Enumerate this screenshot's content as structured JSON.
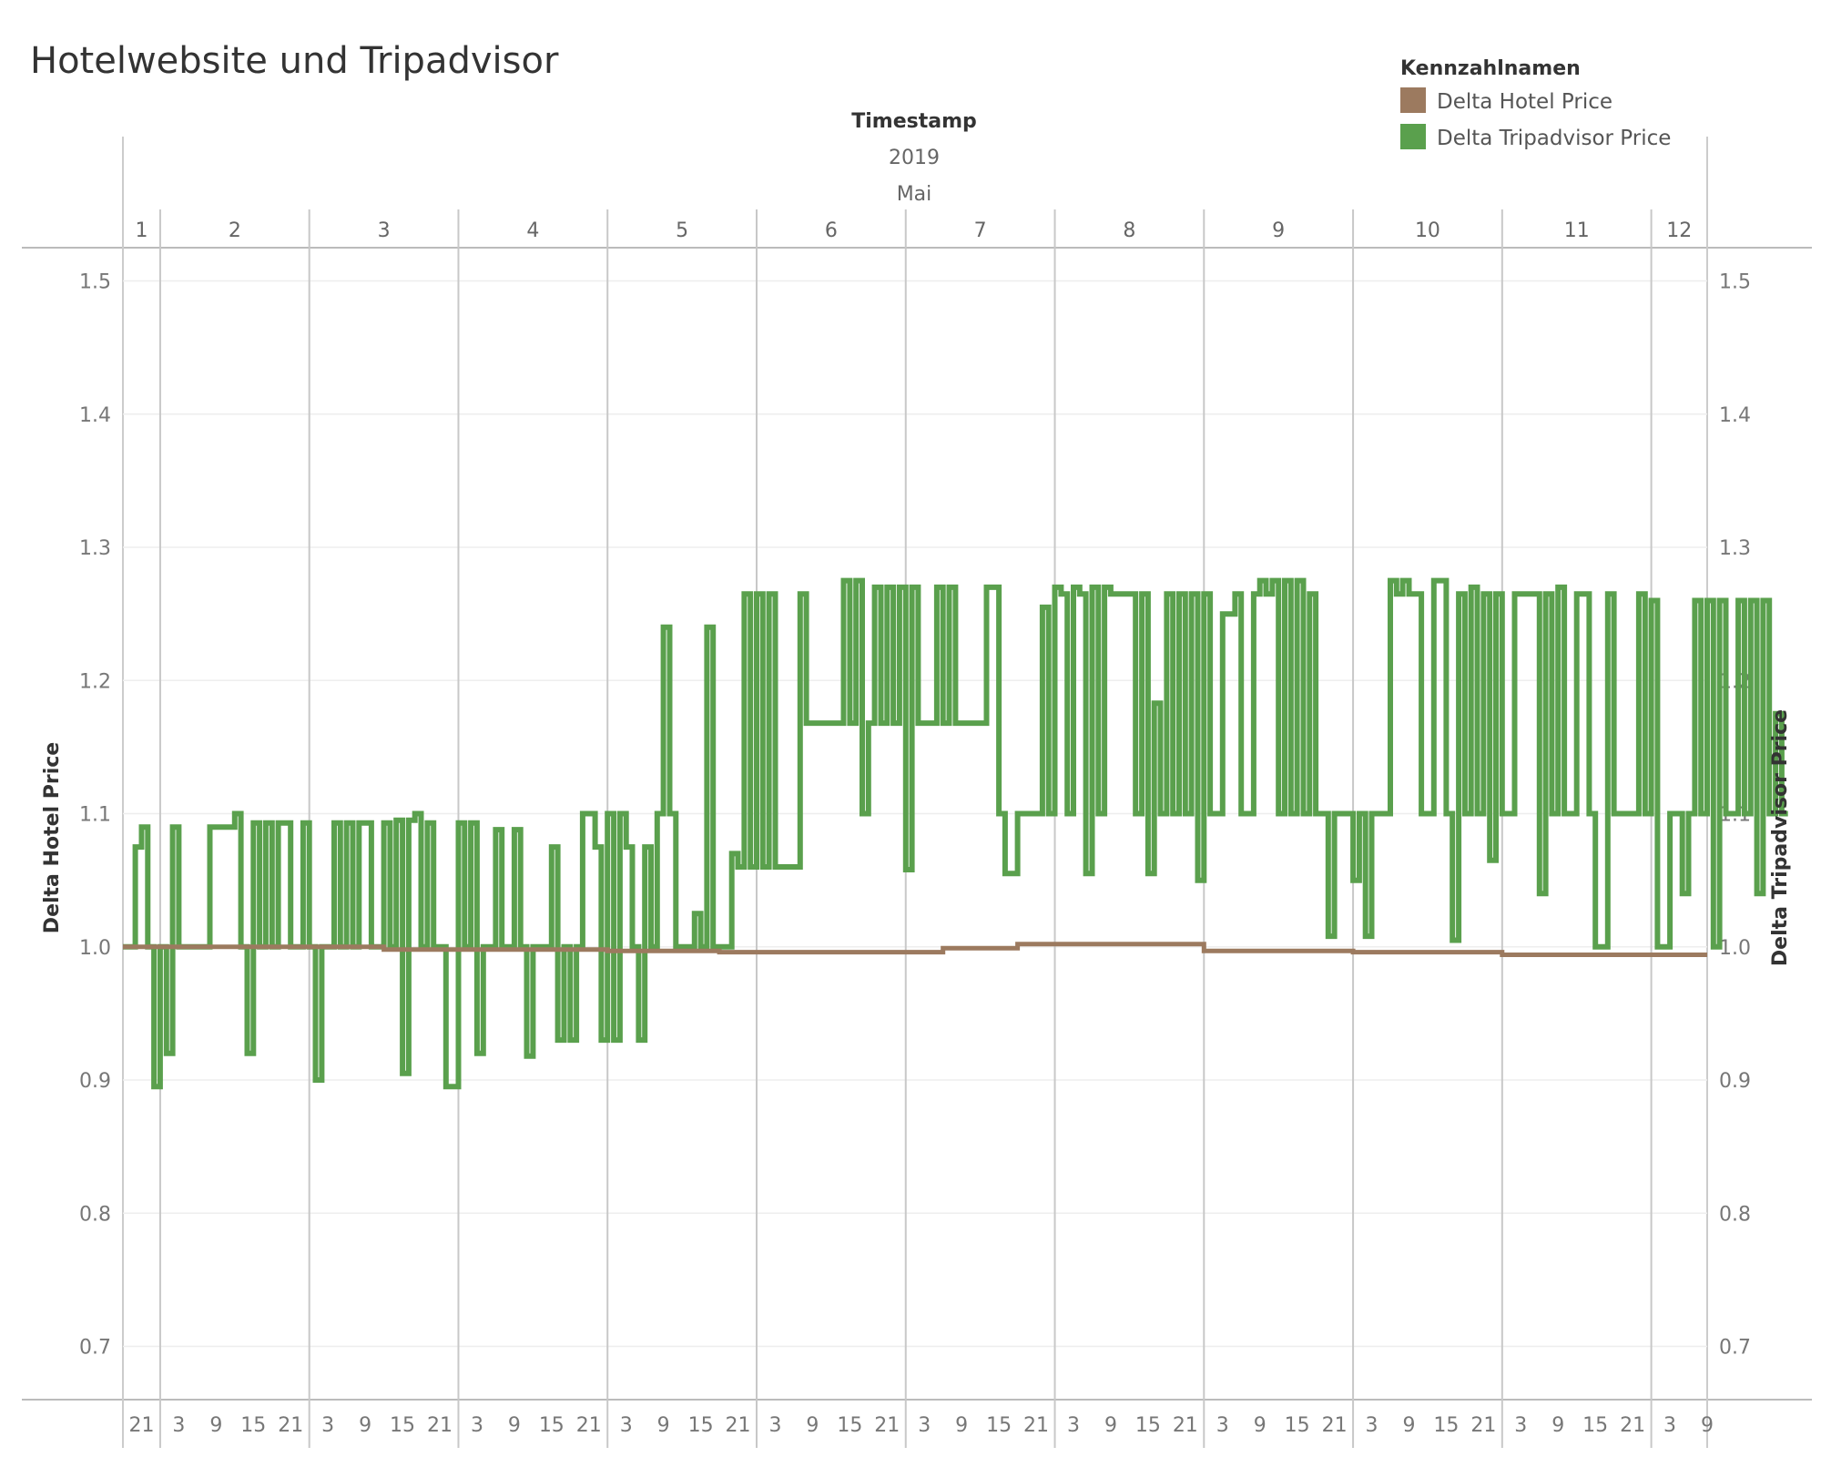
{
  "chart_data": {
    "type": "line",
    "title": "Hotelwebsite und Tripadvisor",
    "x_header": {
      "title": "Timestamp",
      "year": "2019",
      "month": "Mai",
      "days": [
        "1",
        "2",
        "3",
        "4",
        "5",
        "6",
        "7",
        "8",
        "9",
        "10",
        "11",
        "12"
      ]
    },
    "hour_ticks": [
      "21",
      "3",
      "9",
      "15",
      "21",
      "3",
      "9",
      "15",
      "21",
      "3",
      "9",
      "15",
      "21",
      "3",
      "9",
      "15",
      "21",
      "3",
      "9",
      "15",
      "21",
      "3",
      "9",
      "15",
      "21",
      "3",
      "9",
      "15",
      "21",
      "3",
      "9",
      "15",
      "21",
      "3",
      "9",
      "15",
      "21",
      "3",
      "9",
      "15",
      "21",
      "3",
      "9"
    ],
    "x_range_hours": [
      18,
      273
    ],
    "ylabel_left": "Delta Hotel Price",
    "ylabel_right": "Delta Tripadvisor Price",
    "ylim": [
      0.66,
      1.525
    ],
    "y_ticks": [
      "0.7",
      "0.8",
      "0.9",
      "1.0",
      "1.1",
      "1.2",
      "1.3",
      "1.4",
      "1.5"
    ],
    "grid": true,
    "legend": {
      "title": "Kennzahlnamen",
      "position": "top-right",
      "entries": [
        "Delta Hotel Price",
        "Delta Tripadvisor Price"
      ]
    },
    "colors": {
      "hotel": "#9c7a5f",
      "tripadvisor": "#5aa04d"
    },
    "series": [
      {
        "name": "Delta Hotel Price",
        "step": true,
        "points": [
          [
            18,
            1.0
          ],
          [
            40,
            1.0
          ],
          [
            60,
            0.998
          ],
          [
            96,
            0.997
          ],
          [
            114,
            0.996
          ],
          [
            150,
            0.999
          ],
          [
            162,
            1.002
          ],
          [
            186,
            1.002
          ],
          [
            192,
            0.997
          ],
          [
            216,
            0.996
          ],
          [
            240,
            0.994
          ],
          [
            273,
            0.994
          ]
        ]
      },
      {
        "name": "Delta Tripadvisor Price",
        "step": true,
        "points": [
          [
            18,
            1.0
          ],
          [
            20,
            1.075
          ],
          [
            21,
            1.09
          ],
          [
            22,
            1.0
          ],
          [
            23,
            0.895
          ],
          [
            24,
            1.0
          ],
          [
            25,
            0.92
          ],
          [
            26,
            1.09
          ],
          [
            27,
            1.0
          ],
          [
            31,
            1.0
          ],
          [
            32,
            1.09
          ],
          [
            36,
            1.1
          ],
          [
            37,
            1.0
          ],
          [
            38,
            0.92
          ],
          [
            39,
            1.093
          ],
          [
            40,
            1.0
          ],
          [
            41,
            1.093
          ],
          [
            42,
            1.0
          ],
          [
            43,
            1.093
          ],
          [
            45,
            1.0
          ],
          [
            47,
            1.093
          ],
          [
            48,
            1.0
          ],
          [
            49,
            0.9
          ],
          [
            50,
            1.0
          ],
          [
            51,
            1.0
          ],
          [
            52,
            1.093
          ],
          [
            53,
            1.0
          ],
          [
            54,
            1.093
          ],
          [
            55,
            1.0
          ],
          [
            56,
            1.093
          ],
          [
            58,
            1.0
          ],
          [
            60,
            1.093
          ],
          [
            61,
            1.0
          ],
          [
            62,
            1.095
          ],
          [
            63,
            0.905
          ],
          [
            64,
            1.095
          ],
          [
            65,
            1.1
          ],
          [
            66,
            1.0
          ],
          [
            67,
            1.093
          ],
          [
            68,
            1.0
          ],
          [
            70,
            0.895
          ],
          [
            72,
            1.093
          ],
          [
            73,
            1.0
          ],
          [
            74,
            1.093
          ],
          [
            75,
            0.92
          ],
          [
            76,
            1.0
          ],
          [
            78,
            1.088
          ],
          [
            79,
            1.0
          ],
          [
            81,
            1.088
          ],
          [
            82,
            1.0
          ],
          [
            83,
            0.918
          ],
          [
            84,
            1.0
          ],
          [
            86,
            1.0
          ],
          [
            87,
            1.075
          ],
          [
            88,
            0.93
          ],
          [
            89,
            1.0
          ],
          [
            90,
            0.93
          ],
          [
            91,
            1.0
          ],
          [
            92,
            1.1
          ],
          [
            94,
            1.075
          ],
          [
            95,
            0.93
          ],
          [
            96,
            1.1
          ],
          [
            97,
            0.93
          ],
          [
            98,
            1.1
          ],
          [
            99,
            1.075
          ],
          [
            100,
            1.0
          ],
          [
            101,
            0.93
          ],
          [
            102,
            1.075
          ],
          [
            103,
            1.0
          ],
          [
            104,
            1.1
          ],
          [
            105,
            1.24
          ],
          [
            106,
            1.1
          ],
          [
            107,
            1.0
          ],
          [
            110,
            1.025
          ],
          [
            111,
            1.0
          ],
          [
            112,
            1.24
          ],
          [
            113,
            1.0
          ],
          [
            116,
            1.07
          ],
          [
            117,
            1.06
          ],
          [
            118,
            1.265
          ],
          [
            119,
            1.06
          ],
          [
            120,
            1.265
          ],
          [
            121,
            1.06
          ],
          [
            122,
            1.265
          ],
          [
            123,
            1.06
          ],
          [
            127,
            1.265
          ],
          [
            128,
            1.168
          ],
          [
            134,
            1.275
          ],
          [
            135,
            1.168
          ],
          [
            136,
            1.275
          ],
          [
            137,
            1.1
          ],
          [
            138,
            1.168
          ],
          [
            139,
            1.27
          ],
          [
            140,
            1.168
          ],
          [
            141,
            1.27
          ],
          [
            142,
            1.168
          ],
          [
            143,
            1.27
          ],
          [
            144,
            1.058
          ],
          [
            145,
            1.27
          ],
          [
            146,
            1.168
          ],
          [
            149,
            1.27
          ],
          [
            150,
            1.168
          ],
          [
            151,
            1.27
          ],
          [
            152,
            1.168
          ],
          [
            157,
            1.27
          ],
          [
            159,
            1.1
          ],
          [
            160,
            1.055
          ],
          [
            162,
            1.1
          ],
          [
            166,
            1.255
          ],
          [
            167,
            1.1
          ],
          [
            168,
            1.27
          ],
          [
            169,
            1.265
          ],
          [
            170,
            1.1
          ],
          [
            171,
            1.27
          ],
          [
            172,
            1.265
          ],
          [
            173,
            1.055
          ],
          [
            174,
            1.27
          ],
          [
            175,
            1.1
          ],
          [
            176,
            1.27
          ],
          [
            177,
            1.265
          ],
          [
            180,
            1.265
          ],
          [
            181,
            1.1
          ],
          [
            182,
            1.265
          ],
          [
            183,
            1.055
          ],
          [
            184,
            1.183
          ],
          [
            185,
            1.1
          ],
          [
            186,
            1.265
          ],
          [
            187,
            1.1
          ],
          [
            188,
            1.265
          ],
          [
            189,
            1.1
          ],
          [
            190,
            1.265
          ],
          [
            191,
            1.05
          ],
          [
            192,
            1.265
          ],
          [
            193,
            1.1
          ],
          [
            195,
            1.25
          ],
          [
            197,
            1.265
          ],
          [
            198,
            1.1
          ],
          [
            200,
            1.265
          ],
          [
            201,
            1.275
          ],
          [
            202,
            1.265
          ],
          [
            203,
            1.275
          ],
          [
            204,
            1.1
          ],
          [
            205,
            1.275
          ],
          [
            206,
            1.1
          ],
          [
            207,
            1.275
          ],
          [
            208,
            1.1
          ],
          [
            209,
            1.265
          ],
          [
            210,
            1.1
          ],
          [
            212,
            1.008
          ],
          [
            213,
            1.1
          ],
          [
            216,
            1.05
          ],
          [
            217,
            1.1
          ],
          [
            218,
            1.008
          ],
          [
            219,
            1.1
          ],
          [
            222,
            1.275
          ],
          [
            223,
            1.265
          ],
          [
            224,
            1.275
          ],
          [
            225,
            1.265
          ],
          [
            227,
            1.1
          ],
          [
            229,
            1.275
          ],
          [
            231,
            1.1
          ],
          [
            232,
            1.005
          ],
          [
            233,
            1.265
          ],
          [
            234,
            1.1
          ],
          [
            235,
            1.27
          ],
          [
            236,
            1.1
          ],
          [
            237,
            1.265
          ],
          [
            238,
            1.065
          ],
          [
            239,
            1.265
          ],
          [
            240,
            1.1
          ],
          [
            242,
            1.265
          ],
          [
            246,
            1.04
          ],
          [
            247,
            1.265
          ],
          [
            248,
            1.1
          ],
          [
            249,
            1.27
          ],
          [
            250,
            1.1
          ],
          [
            252,
            1.265
          ],
          [
            254,
            1.1
          ],
          [
            255,
            1.0
          ],
          [
            257,
            1.265
          ],
          [
            258,
            1.1
          ],
          [
            262,
            1.265
          ],
          [
            263,
            1.1
          ],
          [
            264,
            1.26
          ],
          [
            265,
            1.0
          ],
          [
            267,
            1.1
          ],
          [
            269,
            1.04
          ],
          [
            270,
            1.1
          ],
          [
            271,
            1.26
          ],
          [
            272,
            1.1
          ],
          [
            273,
            1.26
          ],
          [
            274,
            1.0
          ],
          [
            275,
            1.26
          ],
          [
            276,
            1.1
          ],
          [
            278,
            1.26
          ],
          [
            279,
            1.1
          ],
          [
            280,
            1.26
          ],
          [
            281,
            1.04
          ],
          [
            282,
            1.26
          ],
          [
            283,
            1.1
          ],
          [
            284,
            1.175
          ],
          [
            285,
            1.1
          ],
          [
            286,
            1.1
          ]
        ]
      }
    ]
  }
}
